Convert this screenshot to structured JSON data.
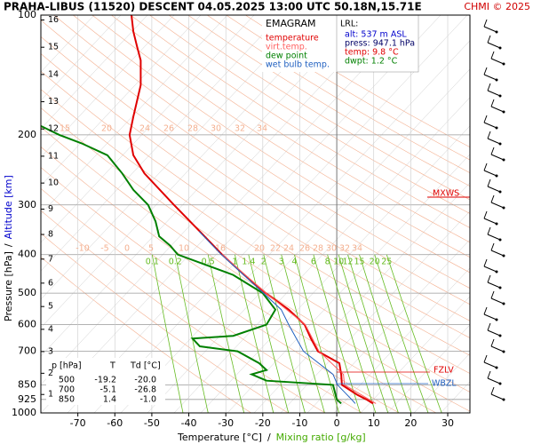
{
  "chart_data": {
    "type": "line",
    "title": "PRAHA-LIBUS (11520)   DESCENT   04.05.2025 13:00 UTC   50.18N,15.71E",
    "credit": "CHMI © 2025",
    "diagram_name": "EMAGRAM",
    "y_scale": "log",
    "xlim": [
      -80,
      36
    ],
    "ylim": [
      1000,
      100
    ],
    "xticks": [
      -70,
      -60,
      -50,
      -40,
      -30,
      -20,
      -10,
      0,
      10,
      20,
      30
    ],
    "yticks": [
      100,
      200,
      300,
      400,
      500,
      600,
      700,
      850,
      925,
      1000
    ],
    "grid": true,
    "x_label": "Temperature [°C]",
    "x_label_2": "Mixing ratio [g/kg]",
    "y_label": "Pressure [hPa]",
    "y_label_2": "Altitude [km]",
    "separator": "/",
    "altitude_ticks": [
      1,
      2,
      3,
      4,
      5,
      6,
      7,
      8,
      9,
      10,
      11,
      12,
      13,
      14,
      15,
      16
    ],
    "mixing_ratio_lines": [
      0.1,
      0.2,
      0.5,
      1,
      1.4,
      2,
      3,
      4,
      6,
      8,
      10,
      12,
      15,
      20,
      25
    ],
    "mixing_ratio_color": "#66bb22",
    "adiabat_labels_upper": [
      15,
      20,
      24,
      26,
      28,
      30,
      32,
      34
    ],
    "adiabat_labels_lower": [
      -10,
      -5,
      0,
      5,
      10,
      16,
      20,
      22,
      24,
      26,
      28,
      30,
      32,
      34
    ],
    "adiabat_color": "#f4b090",
    "series": [
      {
        "name": "temperature",
        "color": "#e00000",
        "x": [
          9.8,
          8.0,
          5.5,
          1.4,
          1.2,
          0.7,
          -5.1,
          -7.0,
          -8.7,
          -13.0,
          -19.2,
          -25.0,
          -31.0,
          -37.0,
          -44.0,
          -52.0,
          -55.0,
          -56.0,
          -55.0,
          -53.0,
          -53.0,
          -54.0,
          -55.0,
          -55.5
        ],
        "y": [
          947,
          925,
          900,
          850,
          800,
          750,
          700,
          650,
          600,
          550,
          500,
          450,
          400,
          350,
          300,
          250,
          225,
          200,
          180,
          150,
          130,
          120,
          110,
          100
        ]
      },
      {
        "name": "virt.temp.",
        "color": "#ff6060",
        "x": [
          10.6,
          2.1,
          1.8,
          -4.8,
          -8.5,
          -19.1,
          -31.0
        ],
        "y": [
          947,
          850,
          800,
          700,
          600,
          500,
          400
        ]
      },
      {
        "name": "dew point",
        "color": "#008000",
        "x": [
          1.2,
          0.0,
          -1.0,
          -19,
          -23,
          -19,
          -21,
          -26.8,
          -37,
          -39,
          -28,
          -19,
          -16.6,
          -20,
          -28,
          -43,
          -45,
          -48,
          -49,
          -51,
          -55,
          -58,
          -62,
          -69,
          -75,
          -80
        ],
        "y": [
          947,
          925,
          850,
          830,
          800,
          780,
          750,
          700,
          680,
          650,
          640,
          600,
          550,
          500,
          450,
          400,
          380,
          360,
          330,
          300,
          275,
          250,
          225,
          210,
          200,
          190
        ]
      },
      {
        "name": "wet bulb temp.",
        "color": "#2060c0",
        "x": [
          5.0,
          4.0,
          0.2,
          -1.0,
          -9.0,
          -13.0,
          -15.0,
          -19.8,
          -31.2,
          -37.2
        ],
        "y": [
          947,
          925,
          850,
          800,
          700,
          600,
          550,
          500,
          400,
          350
        ]
      }
    ],
    "lrl": {
      "title": "LRL:",
      "alt": "alt: 537 m ASL",
      "press": "press: 947.1 hPa",
      "temp": "temp: 9.8 °C",
      "dwpt": "dwpt: 1.2 °C"
    },
    "levels": {
      "mxws": "MXWS",
      "fzlv": "FZLV",
      "wbzl": "WBZL"
    },
    "table": {
      "header": [
        "p [hPa]",
        "T",
        "Td [°C]"
      ],
      "rows": [
        [
          "500",
          "-19.2",
          "-20.0"
        ],
        [
          "700",
          "-5.1",
          "-26.8"
        ],
        [
          "850",
          "1.4",
          "-1.0"
        ]
      ]
    }
  }
}
